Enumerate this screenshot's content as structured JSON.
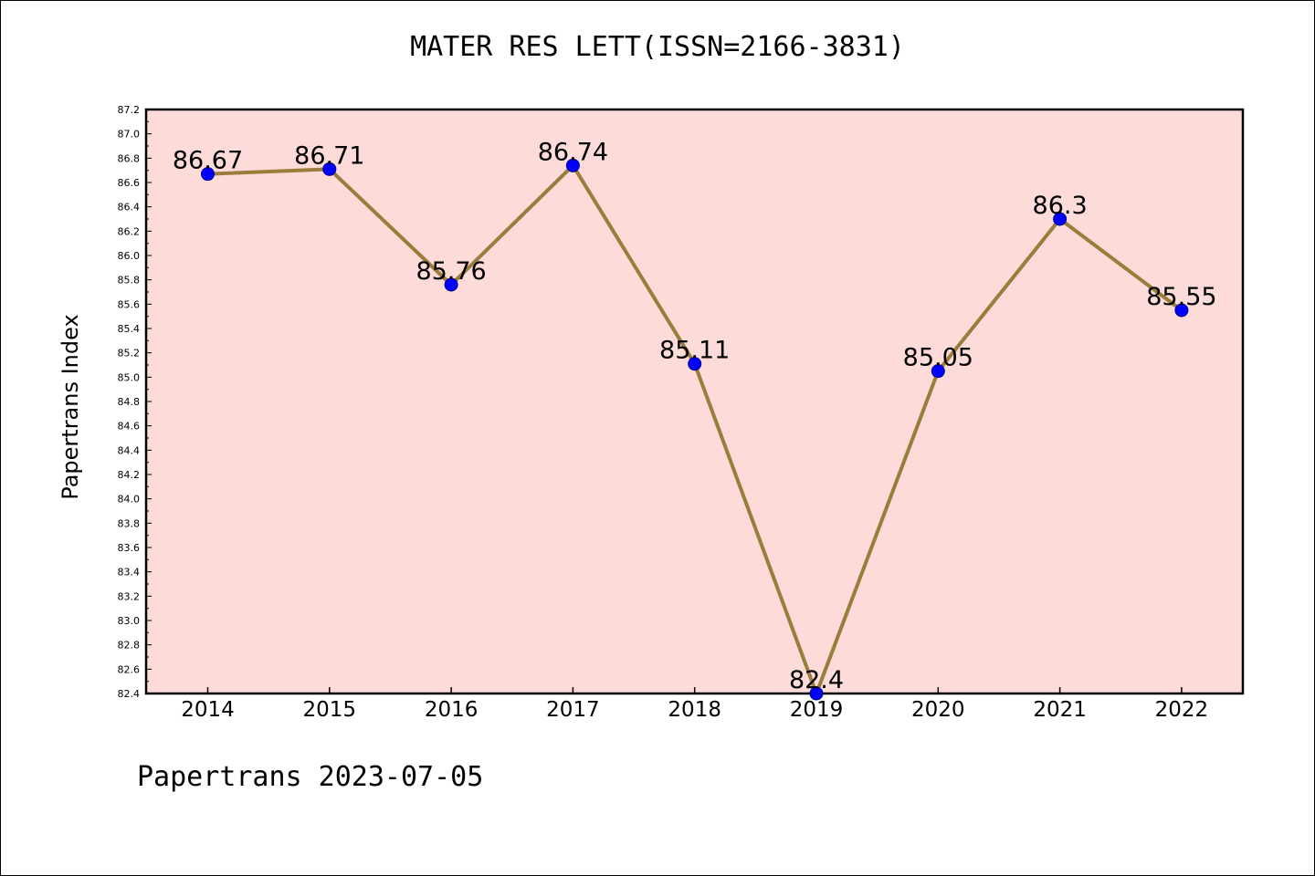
{
  "chart_data": {
    "type": "line",
    "title": "MATER RES LETT(ISSN=2166-3831)",
    "ylabel": "Papertrans Index",
    "xlabel": "",
    "categories": [
      "2014",
      "2015",
      "2016",
      "2017",
      "2018",
      "2019",
      "2020",
      "2021",
      "2022"
    ],
    "values": [
      86.67,
      86.71,
      85.76,
      86.74,
      85.11,
      82.4,
      85.05,
      86.3,
      85.55
    ],
    "data_labels": [
      "86.67",
      "86.71",
      "85.76",
      "86.74",
      "85.11",
      "82.4",
      "85.05",
      "86.3",
      "85.55"
    ],
    "ylim": [
      82.4,
      87.2
    ],
    "yticks": [
      "82.4",
      "82.6",
      "82.8",
      "83.0",
      "83.2",
      "83.4",
      "83.6",
      "83.8",
      "84.0",
      "84.2",
      "84.4",
      "84.6",
      "84.8",
      "85.0",
      "85.2",
      "85.4",
      "85.6",
      "85.8",
      "86.0",
      "86.2",
      "86.4",
      "86.6",
      "86.8",
      "87.0",
      "87.2"
    ],
    "grid": false,
    "plot_background": "#fddbd9",
    "line_color": "#9a7d3a",
    "marker_color": "#0000ff"
  },
  "footer": "Papertrans 2023-07-05"
}
